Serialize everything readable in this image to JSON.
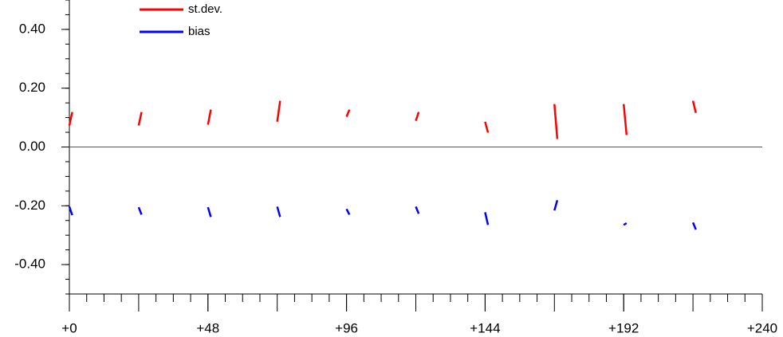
{
  "chart_data": {
    "type": "segments",
    "xlim": [
      0,
      240
    ],
    "ylim": [
      -0.5,
      0.5
    ],
    "xticks": [
      {
        "value": 0,
        "label": "+0"
      },
      {
        "value": 48,
        "label": "+48"
      },
      {
        "value": 96,
        "label": "+96"
      },
      {
        "value": 144,
        "label": "+144"
      },
      {
        "value": 192,
        "label": "+192"
      },
      {
        "value": 240,
        "label": "+240"
      }
    ],
    "yticks": [
      {
        "value": -0.4,
        "label": "-0.40"
      },
      {
        "value": -0.2,
        "label": "-0.20"
      },
      {
        "value": 0,
        "label": "0.00"
      },
      {
        "value": 0.2,
        "label": "0.20"
      },
      {
        "value": 0.4,
        "label": "0.40"
      }
    ],
    "zero_line": true,
    "series": [
      {
        "name": "st.dev.",
        "color": "#ff0000",
        "x": [
          [
            0,
            1
          ],
          [
            24,
            25
          ],
          [
            48,
            49
          ],
          [
            72,
            73
          ],
          [
            96,
            97
          ],
          [
            120,
            121
          ],
          [
            144,
            145
          ],
          [
            168,
            169
          ],
          [
            192,
            193
          ],
          [
            216,
            217
          ]
        ],
        "values": [
          [
            0.073,
            0.119
          ],
          [
            0.073,
            0.119
          ],
          [
            0.076,
            0.127
          ],
          [
            0.086,
            0.157
          ],
          [
            0.103,
            0.127
          ],
          [
            0.089,
            0.119
          ],
          [
            0.086,
            0.049
          ],
          [
            0.146,
            0.027
          ],
          [
            0.146,
            0.041
          ],
          [
            0.157,
            0.116
          ]
        ]
      },
      {
        "name": "bias",
        "color": "#0000ff",
        "x": [
          [
            0,
            1
          ],
          [
            24,
            25
          ],
          [
            48,
            49
          ],
          [
            72,
            73
          ],
          [
            96,
            97
          ],
          [
            120,
            121
          ],
          [
            144,
            145
          ],
          [
            168,
            169
          ],
          [
            192,
            193
          ],
          [
            216,
            217
          ]
        ],
        "values": [
          [
            -0.203,
            -0.232
          ],
          [
            -0.205,
            -0.23
          ],
          [
            -0.205,
            -0.238
          ],
          [
            -0.203,
            -0.238
          ],
          [
            -0.211,
            -0.23
          ],
          [
            -0.203,
            -0.227
          ],
          [
            -0.222,
            -0.265
          ],
          [
            -0.216,
            -0.181
          ],
          [
            -0.265,
            -0.259
          ],
          [
            -0.257,
            -0.281
          ]
        ]
      }
    ]
  }
}
